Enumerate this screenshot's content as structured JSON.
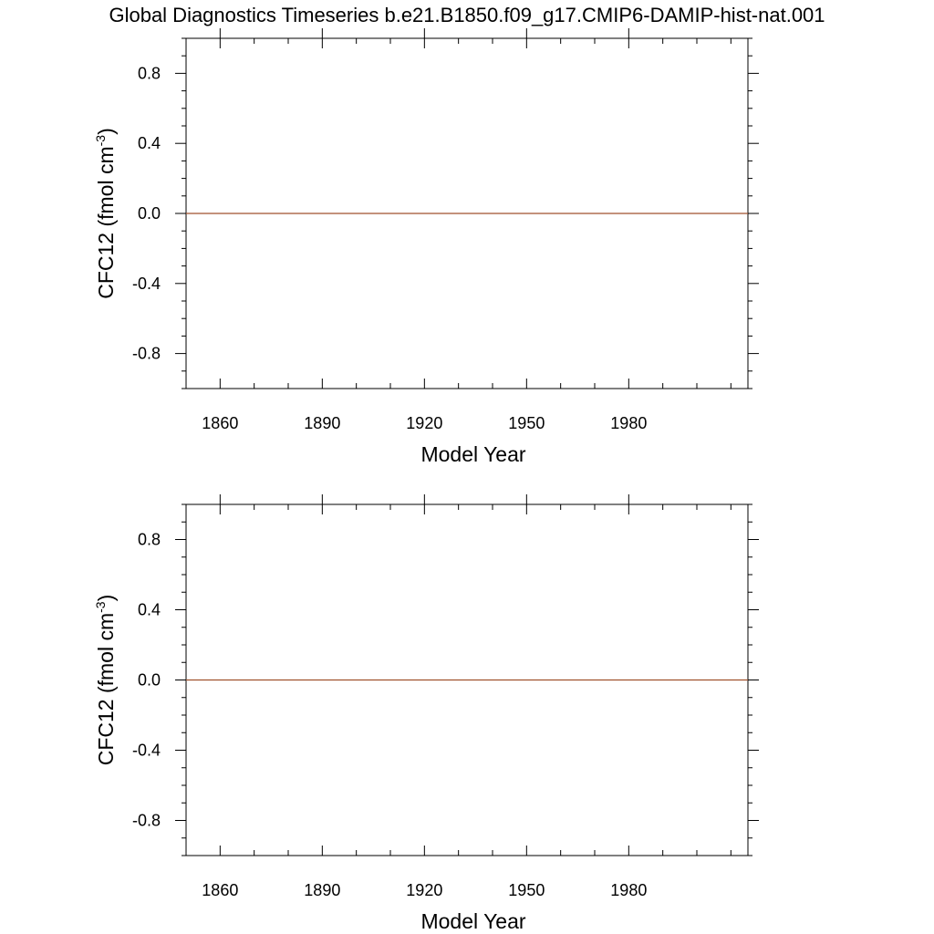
{
  "title": "Global Diagnostics Timeseries b.e21.B1850.f09_g17.CMIP6-DAMIP-hist-nat.001",
  "colors": {
    "series": "#a0522d",
    "axis": "#000000"
  },
  "chart_data": [
    {
      "type": "line",
      "ylabel": {
        "main": "CFC12 (fmol cm",
        "sup": "-3",
        "tail": ")"
      },
      "xlabel": "Model Year",
      "xlim": [
        1850,
        2015
      ],
      "ylim": [
        -1.0,
        1.0
      ],
      "xticks": [
        1860,
        1890,
        1920,
        1950,
        1980
      ],
      "xtick_labels": [
        "1860",
        "1890",
        "1920",
        "1950",
        "1980"
      ],
      "yticks": [
        0.8,
        0.4,
        0.0,
        -0.4,
        -0.8
      ],
      "ytick_labels": [
        "0.8",
        "0.4",
        "0.0",
        "-0.4",
        "-0.8"
      ],
      "grid": false,
      "series": [
        {
          "x": [
            1850,
            2015
          ],
          "y": [
            0.0,
            0.0
          ]
        }
      ]
    },
    {
      "type": "line",
      "ylabel": {
        "main": "CFC12 (fmol cm",
        "sup": "-3",
        "tail": ")"
      },
      "xlabel": "Model Year",
      "xlim": [
        1850,
        2015
      ],
      "ylim": [
        -1.0,
        1.0
      ],
      "xticks": [
        1860,
        1890,
        1920,
        1950,
        1980
      ],
      "xtick_labels": [
        "1860",
        "1890",
        "1920",
        "1950",
        "1980"
      ],
      "yticks": [
        0.8,
        0.4,
        0.0,
        -0.4,
        -0.8
      ],
      "ytick_labels": [
        "0.8",
        "0.4",
        "0.0",
        "-0.4",
        "-0.8"
      ],
      "grid": false,
      "series": [
        {
          "x": [
            1850,
            2015
          ],
          "y": [
            0.0,
            0.0
          ]
        }
      ]
    }
  ]
}
